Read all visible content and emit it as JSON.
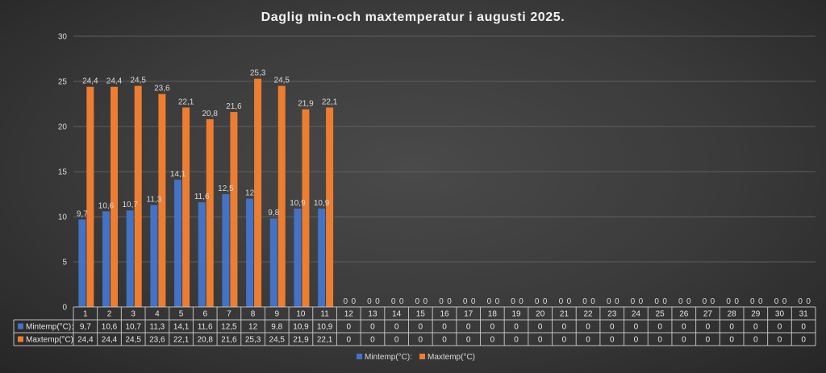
{
  "chart_data": {
    "type": "bar",
    "title": "Daglig min-och maxtemperatur i augusti 2025.",
    "categories": [
      "1",
      "2",
      "3",
      "4",
      "5",
      "6",
      "7",
      "8",
      "9",
      "10",
      "11",
      "12",
      "13",
      "14",
      "15",
      "16",
      "17",
      "18",
      "19",
      "20",
      "21",
      "22",
      "23",
      "24",
      "25",
      "26",
      "27",
      "28",
      "29",
      "30",
      "31"
    ],
    "series": [
      {
        "name": "Mintemp(°C):",
        "color": "#4472C4",
        "values": [
          9.7,
          10.6,
          10.7,
          11.3,
          14.1,
          11.6,
          12.5,
          12,
          9.8,
          10.9,
          10.9,
          0,
          0,
          0,
          0,
          0,
          0,
          0,
          0,
          0,
          0,
          0,
          0,
          0,
          0,
          0,
          0,
          0,
          0,
          0,
          0
        ],
        "labels": [
          "9,7",
          "10,6",
          "10,7",
          "11,3",
          "14,1",
          "11,6",
          "12,5",
          "12",
          "9,8",
          "10,9",
          "10,9",
          "0",
          "0",
          "0",
          "0",
          "0",
          "0",
          "0",
          "0",
          "0",
          "0",
          "0",
          "0",
          "0",
          "0",
          "0",
          "0",
          "0",
          "0",
          "0",
          "0"
        ]
      },
      {
        "name": "Maxtemp(°C)",
        "color": "#ED7D31",
        "values": [
          24.4,
          24.4,
          24.5,
          23.6,
          22.1,
          20.8,
          21.6,
          25.3,
          24.5,
          21.9,
          22.1,
          0,
          0,
          0,
          0,
          0,
          0,
          0,
          0,
          0,
          0,
          0,
          0,
          0,
          0,
          0,
          0,
          0,
          0,
          0,
          0
        ],
        "labels": [
          "24,4",
          "24,4",
          "24,5",
          "23,6",
          "22,1",
          "20,8",
          "21,6",
          "25,3",
          "24,5",
          "21,9",
          "22,1",
          "0",
          "0",
          "0",
          "0",
          "0",
          "0",
          "0",
          "0",
          "0",
          "0",
          "0",
          "0",
          "0",
          "0",
          "0",
          "0",
          "0",
          "0",
          "0",
          "0"
        ]
      }
    ],
    "y_ticks": [
      "0",
      "5",
      "10",
      "15",
      "20",
      "25",
      "30"
    ],
    "ylim": [
      0,
      30
    ],
    "grid": true,
    "legend": "bottom",
    "data_table": true
  }
}
